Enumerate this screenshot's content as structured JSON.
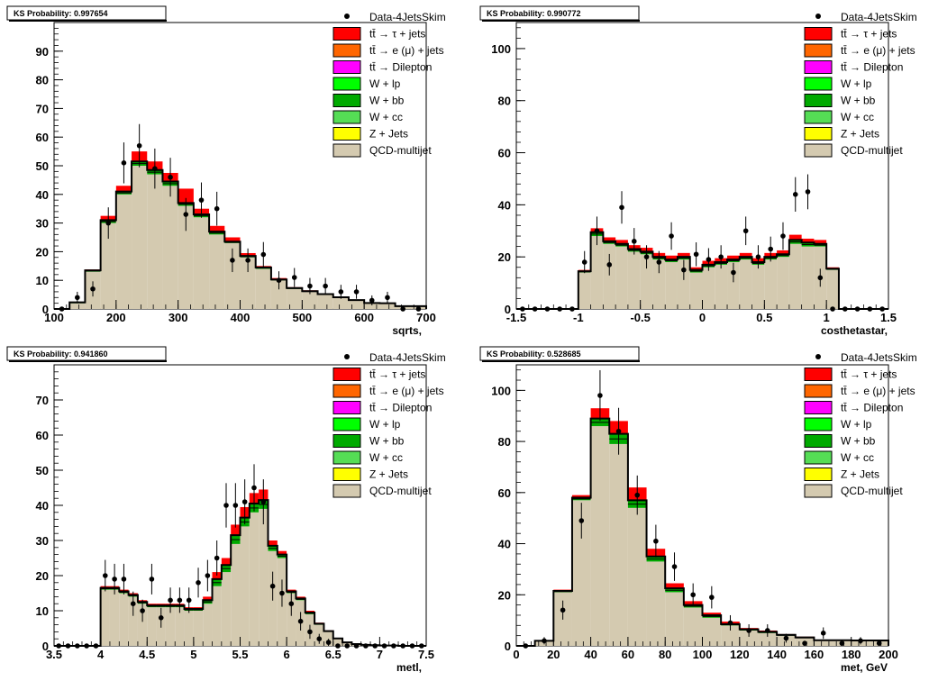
{
  "legend": [
    {
      "label": "Data-4JetsSkim",
      "kind": "data"
    },
    {
      "label": "tt̄ → τ + jets",
      "color": "#ff0000"
    },
    {
      "label": "tt̄ → e (μ) + jets",
      "color": "#ff6600"
    },
    {
      "label": "tt̄ → Dilepton",
      "color": "#ff00ff"
    },
    {
      "label": "W + lp",
      "color": "#00ff00"
    },
    {
      "label": "W + bb",
      "color": "#00aa00"
    },
    {
      "label": "W + cc",
      "color": "#55dd55"
    },
    {
      "label": "Z + Jets",
      "color": "#ffff00"
    },
    {
      "label": "QCD-multijet",
      "color": "#d4cab0"
    }
  ],
  "chart_data": [
    {
      "type": "histogram",
      "ks_label": "KS Probability: 0.997654",
      "xlabel": "sqrts,",
      "xlim": [
        100,
        700
      ],
      "ylim": [
        0,
        100
      ],
      "xticks": [
        100,
        200,
        300,
        400,
        500,
        600,
        700
      ],
      "yticks": [
        0,
        10,
        20,
        30,
        40,
        50,
        60,
        70,
        80,
        90
      ],
      "bin_edges": [
        100,
        125,
        150,
        175,
        200,
        225,
        250,
        275,
        300,
        325,
        350,
        375,
        400,
        425,
        450,
        475,
        500,
        525,
        550,
        575,
        600,
        625,
        650,
        675,
        700
      ],
      "qcd": [
        0,
        2,
        13,
        30,
        40,
        50,
        47,
        43,
        36,
        32,
        26,
        23,
        18,
        14,
        10,
        7,
        6,
        5,
        4,
        3,
        2,
        2,
        1,
        1
      ],
      "ttbar_tau": [
        0,
        0,
        0.3,
        1.5,
        2,
        3.5,
        3,
        3,
        5,
        2,
        2,
        1.5,
        1,
        0.5,
        0.5,
        0.3,
        0.3,
        0.2,
        0.1,
        0.1,
        0,
        0,
        0,
        0
      ],
      "other": [
        0,
        0.3,
        0.5,
        1,
        1,
        1.5,
        1.5,
        1.5,
        1,
        1,
        1,
        0.5,
        0.5,
        0.5,
        0.3,
        0.3,
        0.2,
        0.2,
        0.1,
        0.1,
        0.1,
        0,
        0,
        0
      ],
      "data_x": [
        112.5,
        137.5,
        162.5,
        187.5,
        212.5,
        237.5,
        262.5,
        287.5,
        312.5,
        337.5,
        362.5,
        387.5,
        412.5,
        437.5,
        462.5,
        487.5,
        512.5,
        537.5,
        562.5,
        587.5,
        612.5,
        637.5,
        662.5,
        687.5
      ],
      "data_y": [
        0,
        4,
        7,
        30,
        51,
        57,
        49,
        46,
        33,
        38,
        35,
        17,
        17,
        19,
        10,
        11,
        8,
        8,
        6,
        6,
        3,
        4,
        0,
        0
      ]
    },
    {
      "type": "histogram",
      "ks_label": "KS Probability: 0.990772",
      "xlabel": "costhetastar,",
      "xlim": [
        -1.5,
        1.5
      ],
      "ylim": [
        0,
        110
      ],
      "xticks": [
        -1.5,
        -1,
        -0.5,
        0,
        0.5,
        1,
        1.5
      ],
      "yticks": [
        0,
        20,
        40,
        60,
        80,
        100
      ],
      "bin_edges": [
        -1.5,
        -1.4,
        -1.3,
        -1.2,
        -1.1,
        -1.0,
        -0.9,
        -0.8,
        -0.7,
        -0.6,
        -0.5,
        -0.4,
        -0.3,
        -0.2,
        -0.1,
        0,
        0.1,
        0.2,
        0.3,
        0.4,
        0.5,
        0.6,
        0.7,
        0.8,
        0.9,
        1.0,
        1.1,
        1.2,
        1.3,
        1.4,
        1.5
      ],
      "qcd": [
        0,
        0,
        0,
        0,
        0,
        14,
        28,
        25,
        24,
        22,
        21,
        19,
        18,
        19,
        14,
        16,
        17,
        18,
        19,
        17,
        19,
        20,
        25,
        24,
        24,
        15,
        0,
        0,
        0,
        0
      ],
      "ttbar_tau": [
        0,
        0,
        0,
        0,
        0,
        0.5,
        1.5,
        1.5,
        1.5,
        1.5,
        1.5,
        1.5,
        1.5,
        1.5,
        1,
        1.5,
        1.5,
        1.5,
        1.5,
        1.5,
        1.5,
        1.5,
        2,
        1.5,
        1.5,
        0.5,
        0,
        0,
        0,
        0
      ],
      "other": [
        0,
        0,
        0,
        0,
        0,
        0.5,
        1.5,
        1,
        1,
        1,
        1,
        1,
        1,
        1,
        1,
        1,
        1,
        1,
        1,
        1,
        1,
        1,
        1.5,
        1.5,
        1,
        0.5,
        0,
        0,
        0,
        0
      ],
      "data_x": [
        -1.45,
        -1.35,
        -1.25,
        -1.15,
        -1.05,
        -0.95,
        -0.85,
        -0.75,
        -0.65,
        -0.55,
        -0.45,
        -0.35,
        -0.25,
        -0.15,
        -0.05,
        0.05,
        0.15,
        0.25,
        0.35,
        0.45,
        0.55,
        0.65,
        0.75,
        0.85,
        0.95,
        1.05,
        1.15,
        1.25,
        1.35,
        1.45
      ],
      "data_y": [
        0,
        0,
        0,
        0,
        0,
        18,
        30,
        17,
        39,
        26,
        20,
        18,
        28,
        15,
        21,
        19,
        20,
        14,
        30,
        20,
        23,
        28,
        44,
        45,
        12,
        0,
        0,
        0,
        0,
        0
      ]
    },
    {
      "type": "histogram",
      "ks_label": "KS Probability: 0.941860",
      "xlabel": "metl,",
      "xlim": [
        3.5,
        7.5
      ],
      "ylim": [
        0,
        80
      ],
      "xticks": [
        3.5,
        4,
        4.5,
        5,
        5.5,
        6,
        6.5,
        7,
        7.5
      ],
      "yticks": [
        0,
        10,
        20,
        30,
        40,
        50,
        60,
        70
      ],
      "bin_edges": [
        3.5,
        3.6,
        3.7,
        3.8,
        3.9,
        4.0,
        4.1,
        4.2,
        4.3,
        4.4,
        4.5,
        4.6,
        4.7,
        4.8,
        4.9,
        5.0,
        5.1,
        5.2,
        5.3,
        5.4,
        5.5,
        5.6,
        5.7,
        5.8,
        5.9,
        6.0,
        6.1,
        6.2,
        6.3,
        6.4,
        6.5,
        6.6,
        6.7,
        6.8,
        6.9,
        7.0,
        7.1,
        7.2,
        7.3,
        7.4,
        7.5
      ],
      "qcd": [
        0,
        0,
        0,
        0,
        0,
        16,
        16,
        15,
        14,
        12,
        11,
        11,
        11,
        11,
        10,
        10,
        12,
        17,
        21,
        29,
        34,
        38,
        39,
        27,
        25,
        15,
        13,
        9,
        6,
        4,
        2,
        1,
        0.5,
        0.3,
        0.2,
        0.1,
        0.1,
        0,
        0,
        0
      ],
      "ttbar_tau": [
        0,
        0,
        0,
        0,
        0,
        0.5,
        0.5,
        0.5,
        0.5,
        0.5,
        0.5,
        0.5,
        0.5,
        0.5,
        0.5,
        0.5,
        1,
        2,
        2,
        3,
        3,
        3,
        3,
        1.5,
        1,
        0.5,
        0.5,
        0.5,
        0.3,
        0.2,
        0.1,
        0,
        0,
        0,
        0,
        0,
        0,
        0,
        0,
        0
      ],
      "other": [
        0,
        0,
        0,
        0,
        0,
        0.5,
        0.5,
        0.5,
        0.5,
        0.5,
        0.5,
        0.5,
        0.5,
        0.5,
        0.5,
        0.5,
        1,
        2,
        2,
        2.5,
        2.5,
        2.5,
        2.5,
        1.5,
        1,
        0.5,
        0.5,
        0.5,
        0.3,
        0.2,
        0.1,
        0,
        0,
        0,
        0,
        0,
        0,
        0,
        0,
        0
      ],
      "data_x": [
        3.55,
        3.65,
        3.75,
        3.85,
        3.95,
        4.05,
        4.15,
        4.25,
        4.35,
        4.45,
        4.55,
        4.65,
        4.75,
        4.85,
        4.95,
        5.05,
        5.15,
        5.25,
        5.35,
        5.45,
        5.55,
        5.65,
        5.75,
        5.85,
        5.95,
        6.05,
        6.15,
        6.25,
        6.35,
        6.45,
        6.55,
        6.65,
        6.75,
        6.85,
        6.95,
        7.05,
        7.15,
        7.25,
        7.35,
        7.45
      ],
      "data_y": [
        0,
        0,
        0,
        0,
        0,
        20,
        19,
        19,
        12,
        10,
        19,
        8,
        13,
        13,
        13,
        18,
        20,
        25,
        40,
        40,
        41,
        45,
        41,
        17,
        15,
        12,
        7,
        4,
        2,
        1,
        0,
        0,
        0,
        0,
        0,
        0,
        0,
        0,
        0,
        0
      ]
    },
    {
      "type": "histogram",
      "ks_label": "KS Probability: 0.528685",
      "xlabel": "met, GeV",
      "xlim": [
        0,
        200
      ],
      "ylim": [
        0,
        110
      ],
      "xticks": [
        0,
        20,
        40,
        60,
        80,
        100,
        120,
        140,
        160,
        180,
        200
      ],
      "yticks": [
        0,
        20,
        40,
        60,
        80,
        100
      ],
      "bin_edges": [
        0,
        10,
        20,
        30,
        40,
        50,
        60,
        70,
        80,
        90,
        100,
        110,
        120,
        130,
        140,
        150,
        160,
        170,
        180,
        190,
        200
      ],
      "qcd": [
        0,
        2,
        21,
        57,
        86,
        79,
        54,
        33,
        21,
        15,
        11,
        8,
        6,
        5,
        4,
        3,
        2,
        2,
        2,
        2
      ],
      "ttbar_tau": [
        0,
        0,
        0.5,
        1,
        4,
        5,
        5,
        3,
        2,
        1.5,
        1,
        1,
        0.5,
        0.5,
        0.3,
        0.3,
        0.2,
        0.2,
        0.1,
        0.1
      ],
      "other": [
        0,
        0,
        0.5,
        1,
        3,
        4,
        3,
        2,
        1.5,
        1,
        1,
        0.5,
        0.5,
        0.5,
        0.3,
        0.3,
        0.2,
        0.2,
        0.1,
        0.1
      ],
      "data_x": [
        5,
        15,
        25,
        35,
        45,
        55,
        65,
        75,
        85,
        95,
        105,
        115,
        125,
        135,
        145,
        155,
        165,
        175,
        185,
        195
      ],
      "data_y": [
        0,
        2,
        14,
        49,
        98,
        84,
        59,
        41,
        31,
        20,
        19,
        9,
        6,
        6,
        3,
        1,
        5,
        1,
        2,
        1
      ]
    }
  ]
}
